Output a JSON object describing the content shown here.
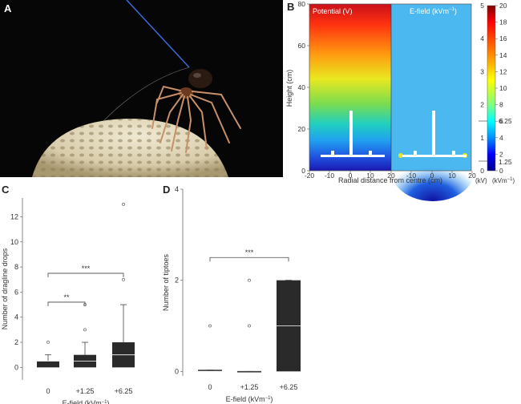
{
  "panels": {
    "a": {
      "label": "A"
    },
    "b": {
      "label": "B",
      "left_title": "Potential (V)",
      "right_title_main": "E-field (kVm",
      "right_title_sup": "−1",
      "right_title_end": ")",
      "ylabel": "Height (cm)",
      "xlabel": "Radial distance from centre (cm)",
      "yticks": [
        "80",
        "60",
        "40",
        "20",
        "0"
      ],
      "xticks_left": [
        "-20",
        "-10",
        "0",
        "10",
        "20"
      ],
      "xticks_right": [
        "-10",
        "0",
        "10",
        "20"
      ],
      "colorbar_left_ticks": [
        "5",
        "4",
        "3",
        "2",
        "1",
        "0"
      ],
      "colorbar_right_ticks": [
        "20",
        "18",
        "16",
        "14",
        "12",
        "10",
        "8",
        "6",
        "4",
        "2",
        "0"
      ],
      "marker_6": "6.25",
      "marker_1": "1.25",
      "unit_left": "(kV)",
      "unit_right_main": "(kVm",
      "unit_right_sup": "−1",
      "unit_right_end": ")"
    },
    "c": {
      "label": "C"
    },
    "d": {
      "label": "D"
    }
  },
  "colors": {
    "bar_dark": "#2a2a2a",
    "field_blue": "#4cb8f0",
    "grid_axis": "#555555"
  },
  "chart_data": [
    {
      "type": "box",
      "panel": "C",
      "xlabel": "E-field (kVm−1)",
      "ylabel": "Number of dragline drops",
      "categories": [
        "0",
        "+1.25",
        "+6.25"
      ],
      "ylim": [
        -1,
        13.5
      ],
      "yticks": [
        0,
        2,
        4,
        6,
        8,
        10,
        12
      ],
      "boxes": [
        {
          "q1": 0,
          "median": 0.5,
          "q3": 0.5,
          "whisker_low": 0,
          "whisker_high": 1,
          "outliers": [
            2
          ]
        },
        {
          "q1": 0,
          "median": 0.5,
          "q3": 1,
          "whisker_low": 0,
          "whisker_high": 2,
          "outliers": [
            3,
            5
          ]
        },
        {
          "q1": 0,
          "median": 1,
          "q3": 2,
          "whisker_low": 0,
          "whisker_high": 5,
          "outliers": [
            7,
            13
          ]
        }
      ],
      "significance": [
        {
          "from": 0,
          "to": 1,
          "label": "**",
          "y": 5.2
        },
        {
          "from": 0,
          "to": 2,
          "label": "***",
          "y": 7.5
        }
      ]
    },
    {
      "type": "box",
      "panel": "D",
      "xlabel": "E-field (kVm−1)",
      "ylabel": "Number of tiptoes",
      "categories": [
        "0",
        "+1.25",
        "+6.25"
      ],
      "ylim": [
        -0.1,
        4
      ],
      "yticks": [
        0,
        2,
        4
      ],
      "boxes": [
        {
          "q1": 0.03,
          "median": 0.03,
          "q3": 0.03,
          "whisker_low": 0.03,
          "whisker_high": 0.03,
          "outliers": [
            1
          ]
        },
        {
          "q1": 0,
          "median": 0,
          "q3": 0,
          "whisker_low": 0,
          "whisker_high": 0,
          "outliers": [
            1,
            2
          ]
        },
        {
          "q1": 0,
          "median": 1,
          "q3": 2,
          "whisker_low": 0,
          "whisker_high": 2,
          "outliers": []
        }
      ],
      "significance": [
        {
          "from": 0,
          "to": 2,
          "label": "***",
          "y": 2.5
        }
      ]
    }
  ]
}
